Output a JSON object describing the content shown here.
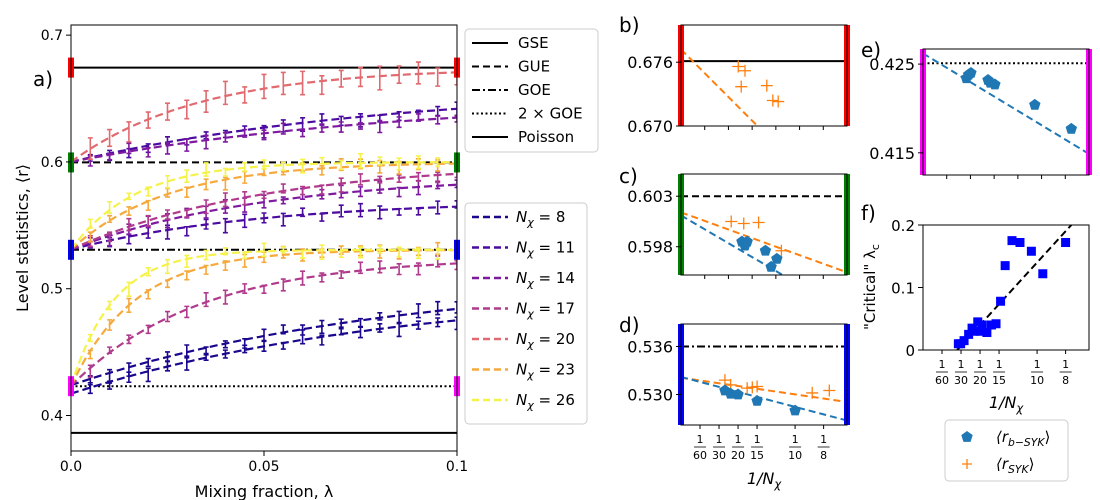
{
  "colors": {
    "series": [
      "#1a078d",
      "#4b0aa0",
      "#7e1aa0",
      "#b03b8c",
      "#e06a6f",
      "#f6a93d",
      "#f5f24a"
    ],
    "red": "#ff0000",
    "green": "#008000",
    "blue": "#0000ff",
    "magenta": "#ff00ff",
    "pentagon": "#1f77b4",
    "plus": "#ff7f0e",
    "square": "#0000ff"
  },
  "chart_data": [
    {
      "panel": "a",
      "type": "line",
      "panel_label": "a)",
      "xlabel": "Mixing fraction, λ",
      "ylabel": "Level statistics, ⟨r⟩",
      "xlim": [
        0,
        0.1
      ],
      "ylim": [
        0.372,
        0.708
      ],
      "xticks": [
        0,
        0.05,
        0.1
      ],
      "xtick_labels": [
        "0.0",
        "0.05",
        "0.1"
      ],
      "yticks": [
        0.4,
        0.5,
        0.6,
        0.7
      ],
      "ytick_labels": [
        "0.4",
        "0.5",
        "0.6",
        "0.7"
      ],
      "reference_lines": [
        {
          "name": "GSE",
          "y": 0.6744,
          "style": "solid"
        },
        {
          "name": "GUE",
          "y": 0.5996,
          "style": "dashed"
        },
        {
          "name": "GOE",
          "y": 0.5307,
          "style": "dashdot"
        },
        {
          "name": "2 × GOE",
          "y": 0.4231,
          "style": "dotted"
        },
        {
          "name": "Poisson",
          "y": 0.3863,
          "style": "solid"
        }
      ],
      "legend_refs": [
        "GSE",
        "GUE",
        "GOE",
        "2 × GOE",
        "Poisson"
      ],
      "series": [
        {
          "name": "Nχ = 8",
          "sub": "χ",
          "num": "8",
          "curves": [
            {
              "y0": 0.4172,
              "yinf": 0.5,
              "k": 12
            },
            {
              "y0": 0.4239,
              "yinf": 0.51,
              "k": 12
            }
          ]
        },
        {
          "name": "Nχ = 11",
          "sub": "χ",
          "num": "11",
          "curves": [
            {
              "y0": 0.531,
              "yinf": 0.57,
              "k": 20
            },
            {
              "y0": 0.6,
              "yinf": 0.66,
              "k": 12
            }
          ]
        },
        {
          "name": "Nχ = 14",
          "sub": "χ",
          "num": "14",
          "curves": [
            {
              "y0": 0.531,
              "yinf": 0.59,
              "k": 20
            },
            {
              "y0": 0.6,
              "yinf": 0.65,
              "k": 12
            }
          ]
        },
        {
          "name": "Nχ = 17",
          "sub": "χ",
          "num": "17",
          "curves": [
            {
              "y0": 0.4233,
              "yinf": 0.525,
              "k": 30
            },
            {
              "y0": 0.531,
              "yinf": 0.6,
              "k": 20
            }
          ]
        },
        {
          "name": "Nχ = 20",
          "sub": "χ",
          "num": "20",
          "curves": [
            {
              "y0": 0.6,
              "yinf": 0.6744,
              "k": 30
            }
          ]
        },
        {
          "name": "Nχ = 23",
          "sub": "χ",
          "num": "23",
          "curves": [
            {
              "y0": 0.4232,
              "yinf": 0.5307,
              "k": 60
            },
            {
              "y0": 0.531,
              "yinf": 0.6,
              "k": 40
            }
          ]
        },
        {
          "name": "Nχ = 26",
          "sub": "χ",
          "num": "26",
          "curves": [
            {
              "y0": 0.4232,
              "yinf": 0.5307,
              "k": 90
            },
            {
              "y0": 0.531,
              "yinf": 0.6,
              "k": 60
            }
          ]
        }
      ],
      "markers_left": [
        {
          "y": 0.6744,
          "color": "red"
        },
        {
          "y": 0.5996,
          "color": "green"
        },
        {
          "y": 0.5307,
          "color": "blue"
        },
        {
          "y": 0.4231,
          "color": "magenta"
        }
      ],
      "markers_right": [
        {
          "y": 0.6744,
          "color": "red"
        },
        {
          "y": 0.5996,
          "color": "green"
        },
        {
          "y": 0.5307,
          "color": "blue"
        },
        {
          "y": 0.4231,
          "color": "magenta"
        }
      ]
    },
    {
      "panel": "b",
      "type": "scatter",
      "panel_label": "b)",
      "ylim": [
        0.67,
        0.6795
      ],
      "yticks": [
        0.67,
        0.676
      ],
      "ytick_labels": [
        "0.670",
        "0.676"
      ],
      "edge_color": "red",
      "reference_lines": [
        {
          "name": "GSE",
          "y": 0.6761,
          "style": "solid"
        }
      ],
      "fits": [
        {
          "marker": "plus",
          "y_at_0": 0.6772,
          "slope": -0.1075
        }
      ],
      "points": [
        {
          "marker": "plus",
          "x": 0.0502,
          "y": 0.6756
        },
        {
          "marker": "plus",
          "x": 0.0528,
          "y": 0.6737
        },
        {
          "marker": "plus",
          "x": 0.0561,
          "y": 0.6752
        },
        {
          "marker": "plus",
          "x": 0.0752,
          "y": 0.6738
        },
        {
          "marker": "plus",
          "x": 0.0805,
          "y": 0.6724
        },
        {
          "marker": "plus",
          "x": 0.0852,
          "y": 0.6723
        }
      ]
    },
    {
      "panel": "c",
      "type": "scatter",
      "panel_label": "c)",
      "ylim": [
        0.5952,
        0.6052
      ],
      "yticks": [
        0.598,
        0.603
      ],
      "ytick_labels": [
        "0.598",
        "0.603"
      ],
      "edge_color": "green",
      "reference_lines": [
        {
          "name": "GUE",
          "y": 0.603,
          "style": "dashed"
        }
      ],
      "fits": [
        {
          "marker": "plus",
          "y_at_0": 0.6014,
          "slope": -0.0408
        },
        {
          "marker": "pentagon",
          "y_at_0": 0.6011,
          "slope": -0.0662
        }
      ],
      "points": [
        {
          "marker": "plus",
          "x": 0.044,
          "y": 0.6005
        },
        {
          "marker": "plus",
          "x": 0.055,
          "y": 0.6003
        },
        {
          "marker": "plus",
          "x": 0.068,
          "y": 0.6004
        },
        {
          "marker": "plus",
          "x": 0.088,
          "y": 0.5976
        },
        {
          "marker": "pentagon",
          "x": 0.0534,
          "y": 0.5985
        },
        {
          "marker": "pentagon",
          "x": 0.056,
          "y": 0.5981
        },
        {
          "marker": "pentagon",
          "x": 0.058,
          "y": 0.5985
        },
        {
          "marker": "pentagon",
          "x": 0.074,
          "y": 0.5976
        },
        {
          "marker": "pentagon",
          "x": 0.079,
          "y": 0.596
        },
        {
          "marker": "pentagon",
          "x": 0.084,
          "y": 0.5968
        }
      ]
    },
    {
      "panel": "d",
      "type": "scatter",
      "panel_label": "d)",
      "ylim": [
        0.5262,
        0.5388
      ],
      "yticks": [
        0.53,
        0.536
      ],
      "ytick_labels": [
        "0.530",
        "0.536"
      ],
      "edge_color": "blue",
      "xticks": [
        0.01667,
        0.03333,
        0.05,
        0.06667,
        0.1,
        0.125
      ],
      "xtick_num": [
        "1",
        "1",
        "1",
        "1",
        "1",
        "1"
      ],
      "xtick_den": [
        "60",
        "30",
        "20",
        "15",
        "10",
        "8"
      ],
      "xlabel": "1/Nχ",
      "reference_lines": [
        {
          "name": "GOE",
          "y": 0.536,
          "style": "dashdot"
        }
      ],
      "fits": [
        {
          "marker": "plus",
          "y_at_0": 0.5321,
          "slope": -0.0208
        },
        {
          "marker": "pentagon",
          "y_at_0": 0.5322,
          "slope": -0.0374
        }
      ],
      "points": [
        {
          "marker": "plus",
          "x": 0.0385,
          "y": 0.5318
        },
        {
          "marker": "plus",
          "x": 0.0435,
          "y": 0.5312
        },
        {
          "marker": "plus",
          "x": 0.058,
          "y": 0.5308
        },
        {
          "marker": "plus",
          "x": 0.0625,
          "y": 0.5309
        },
        {
          "marker": "plus",
          "x": 0.0667,
          "y": 0.531
        },
        {
          "marker": "plus",
          "x": 0.115,
          "y": 0.5302
        },
        {
          "marker": "plus",
          "x": 0.13,
          "y": 0.5305
        },
        {
          "marker": "pentagon",
          "x": 0.0385,
          "y": 0.5305
        },
        {
          "marker": "pentagon",
          "x": 0.0435,
          "y": 0.5301
        },
        {
          "marker": "pentagon",
          "x": 0.05,
          "y": 0.53
        },
        {
          "marker": "pentagon",
          "x": 0.0667,
          "y": 0.5292
        },
        {
          "marker": "pentagon",
          "x": 0.1,
          "y": 0.528
        }
      ]
    },
    {
      "panel": "e",
      "type": "scatter",
      "panel_label": "e)",
      "ylim": [
        0.4125,
        0.4267
      ],
      "yticks": [
        0.415,
        0.425
      ],
      "ytick_labels": [
        "0.415",
        "0.425"
      ],
      "edge_color": "magenta",
      "reference_lines": [
        {
          "name": "2 × GOE",
          "y": 0.4251,
          "style": "dotted"
        }
      ],
      "fits": [
        {
          "marker": "pentagon",
          "y_at_0": 0.4262,
          "slope": -0.0778
        }
      ],
      "points": [
        {
          "marker": "pentagon",
          "x": 0.038,
          "y": 0.4234
        },
        {
          "marker": "pentagon",
          "x": 0.04,
          "y": 0.4238
        },
        {
          "marker": "pentagon",
          "x": 0.042,
          "y": 0.424
        },
        {
          "marker": "pentagon",
          "x": 0.057,
          "y": 0.4232
        },
        {
          "marker": "pentagon",
          "x": 0.059,
          "y": 0.4229
        },
        {
          "marker": "pentagon",
          "x": 0.063,
          "y": 0.4227
        },
        {
          "marker": "pentagon",
          "x": 0.098,
          "y": 0.4204
        },
        {
          "marker": "pentagon",
          "x": 0.13,
          "y": 0.4177
        }
      ]
    },
    {
      "panel": "f",
      "type": "scatter",
      "panel_label": "f)",
      "ylabel": "\"Critical\" λc",
      "xlabel": "1/Nχ",
      "ylim": [
        0,
        0.2
      ],
      "yticks": [
        0,
        0.1,
        0.2
      ],
      "ytick_labels": [
        "0",
        "0.1",
        "0.2"
      ],
      "xticks": [
        0.01667,
        0.03333,
        0.05,
        0.06667,
        0.1,
        0.125
      ],
      "xtick_num": [
        "1",
        "1",
        "1",
        "1",
        "1",
        "1"
      ],
      "xtick_den": [
        "60",
        "30",
        "20",
        "15",
        "10",
        "8"
      ],
      "fits": [
        {
          "marker": "square",
          "y_at_0": -0.06,
          "slope": 2.0
        }
      ],
      "points": [
        {
          "x": 0.031,
          "y": 0.01
        },
        {
          "x": 0.033,
          "y": 0.01
        },
        {
          "x": 0.036,
          "y": 0.015
        },
        {
          "x": 0.04,
          "y": 0.025
        },
        {
          "x": 0.043,
          "y": 0.035
        },
        {
          "x": 0.045,
          "y": 0.03
        },
        {
          "x": 0.048,
          "y": 0.045
        },
        {
          "x": 0.05,
          "y": 0.03
        },
        {
          "x": 0.052,
          "y": 0.04
        },
        {
          "x": 0.056,
          "y": 0.028
        },
        {
          "x": 0.06,
          "y": 0.04
        },
        {
          "x": 0.064,
          "y": 0.042
        },
        {
          "x": 0.068,
          "y": 0.078
        },
        {
          "x": 0.072,
          "y": 0.135
        },
        {
          "x": 0.078,
          "y": 0.175
        },
        {
          "x": 0.085,
          "y": 0.172
        },
        {
          "x": 0.095,
          "y": 0.158
        },
        {
          "x": 0.105,
          "y": 0.122
        },
        {
          "x": 0.125,
          "y": 0.172
        }
      ]
    }
  ],
  "bottom_legend": [
    {
      "marker": "pentagon",
      "label": "⟨r",
      "sub": "b−SYK",
      "tail": "⟩"
    },
    {
      "marker": "plus",
      "label": "⟨r",
      "sub": "SYK",
      "tail": "⟩"
    }
  ]
}
